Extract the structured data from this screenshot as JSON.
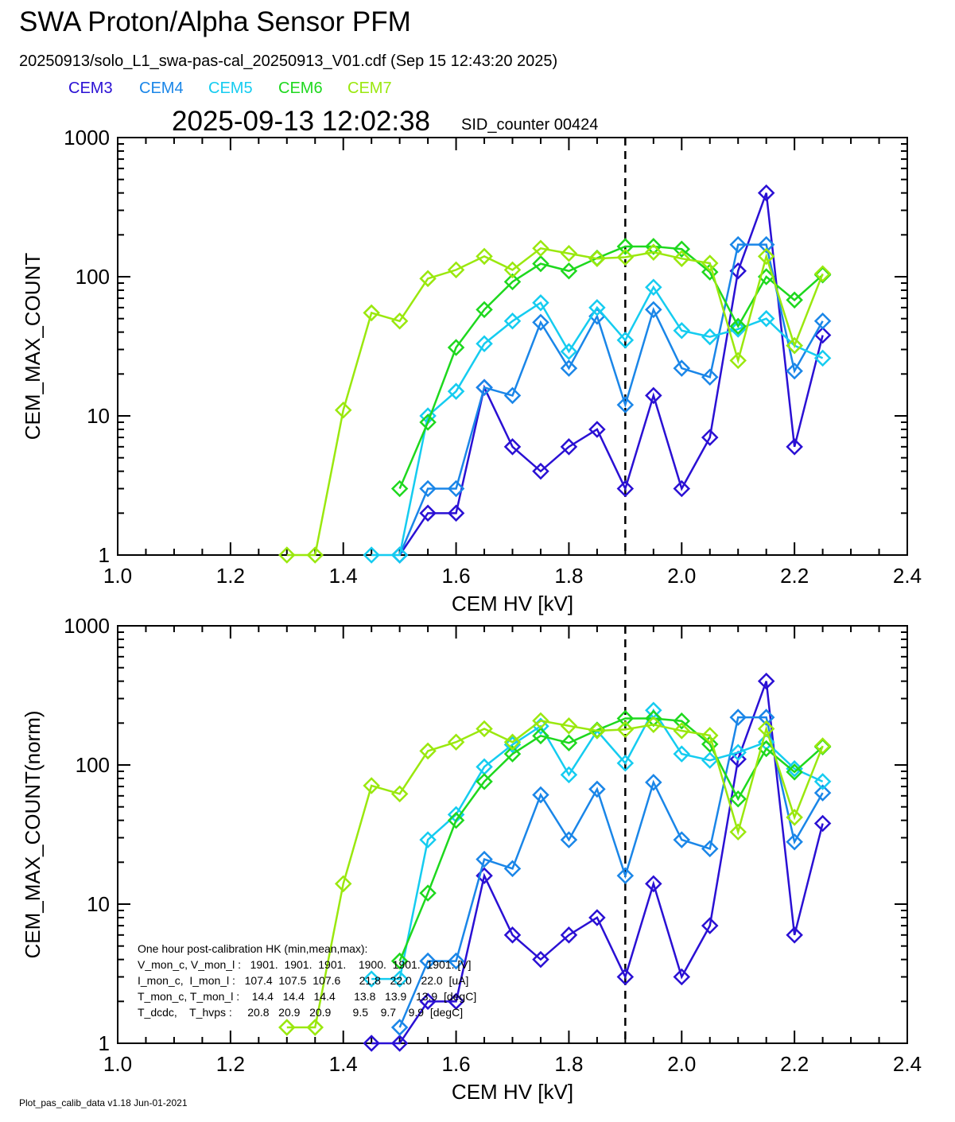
{
  "header": {
    "title": "SWA Proton/Alpha Sensor PFM",
    "subtitle": "20250913/solo_L1_swa-pas-cal_20250913_V01.cdf  (Sep 15 12:43:20 2025)",
    "timestamp": "2025-09-13 12:02:38",
    "sid": "SID_counter 00424"
  },
  "legend": [
    {
      "name": "CEM3",
      "color": "#2a10d4"
    },
    {
      "name": "CEM4",
      "color": "#1a86e8"
    },
    {
      "name": "CEM5",
      "color": "#15ccf0"
    },
    {
      "name": "CEM6",
      "color": "#1ed81e"
    },
    {
      "name": "CEM7",
      "color": "#9ae80e"
    }
  ],
  "footer": "Plot_pas_calib_data v1.18 Jun-01-2021",
  "hk_box": {
    "lines": [
      "One hour post-calibration HK (min,mean,max):",
      "V_mon_c, V_mon_l :   1901.  1901.  1901.    1900.  1901.  1901. [V]",
      "I_mon_c,  I_mon_l :   107.4  107.5  107.6      21.8   22.0   22.0  [uA]",
      "T_mon_c, T_mon_l :    14.4   14.4   14.4      13.8   13.9   13.9  [degC]",
      "T_dcdc,    T_hvps :     20.8   20.9   20.9       9.5    9.7    9.9  [degC]"
    ]
  },
  "chart_data": [
    {
      "type": "line",
      "title": "",
      "xlabel": "CEM HV [kV]",
      "ylabel": "CEM_MAX_COUNT",
      "xlim": [
        1.0,
        2.4
      ],
      "ylim": [
        1,
        1000
      ],
      "yscale": "log",
      "x_ticks": [
        "1.0",
        "1.2",
        "1.4",
        "1.6",
        "1.8",
        "2.0",
        "2.2",
        "2.4"
      ],
      "y_ticks": [
        "1",
        "10",
        "100",
        "1000"
      ],
      "vline_x": 1.9,
      "series": [
        {
          "name": "CEM3",
          "color": "#2a10d4",
          "points": [
            [
              1.5,
              1
            ],
            [
              1.55,
              2
            ],
            [
              1.6,
              2
            ],
            [
              1.65,
              16
            ],
            [
              1.7,
              6
            ],
            [
              1.75,
              4
            ],
            [
              1.8,
              6
            ],
            [
              1.85,
              8
            ],
            [
              1.9,
              3
            ],
            [
              1.95,
              14
            ],
            [
              2.0,
              3
            ],
            [
              2.05,
              7
            ],
            [
              2.1,
              110
            ],
            [
              2.15,
              400
            ],
            [
              2.2,
              6
            ],
            [
              2.25,
              38
            ]
          ]
        },
        {
          "name": "CEM4",
          "color": "#1a86e8",
          "points": [
            [
              1.5,
              1
            ],
            [
              1.55,
              3
            ],
            [
              1.6,
              3
            ],
            [
              1.65,
              16
            ],
            [
              1.7,
              14
            ],
            [
              1.75,
              47
            ],
            [
              1.8,
              22
            ],
            [
              1.85,
              52
            ],
            [
              1.9,
              12
            ],
            [
              1.95,
              58
            ],
            [
              2.0,
              22
            ],
            [
              2.05,
              19
            ],
            [
              2.1,
              170
            ],
            [
              2.15,
              170
            ],
            [
              2.2,
              21
            ],
            [
              2.25,
              48
            ]
          ]
        },
        {
          "name": "CEM5",
          "color": "#15ccf0",
          "points": [
            [
              1.45,
              1
            ],
            [
              1.5,
              1
            ],
            [
              1.55,
              10
            ],
            [
              1.6,
              15
            ],
            [
              1.65,
              33
            ],
            [
              1.7,
              48
            ],
            [
              1.75,
              65
            ],
            [
              1.8,
              29
            ],
            [
              1.85,
              60
            ],
            [
              1.9,
              35
            ],
            [
              1.95,
              84
            ],
            [
              2.0,
              41
            ],
            [
              2.05,
              37
            ],
            [
              2.1,
              42
            ],
            [
              2.15,
              50
            ],
            [
              2.2,
              32
            ],
            [
              2.25,
              26
            ]
          ]
        },
        {
          "name": "CEM6",
          "color": "#1ed81e",
          "points": [
            [
              1.5,
              3
            ],
            [
              1.55,
              9
            ],
            [
              1.6,
              31
            ],
            [
              1.65,
              58
            ],
            [
              1.7,
              92
            ],
            [
              1.75,
              124
            ],
            [
              1.8,
              110
            ],
            [
              1.85,
              136
            ],
            [
              1.9,
              165
            ],
            [
              1.95,
              165
            ],
            [
              2.0,
              158
            ],
            [
              2.05,
              108
            ],
            [
              2.1,
              44
            ],
            [
              2.15,
              100
            ],
            [
              2.2,
              68
            ],
            [
              2.25,
              103
            ]
          ]
        },
        {
          "name": "CEM7",
          "color": "#9ae80e",
          "points": [
            [
              1.3,
              1
            ],
            [
              1.35,
              1
            ],
            [
              1.4,
              11
            ],
            [
              1.45,
              55
            ],
            [
              1.5,
              48
            ],
            [
              1.55,
              97
            ],
            [
              1.6,
              112
            ],
            [
              1.65,
              140
            ],
            [
              1.7,
              112
            ],
            [
              1.75,
              160
            ],
            [
              1.8,
              147
            ],
            [
              1.85,
              135
            ],
            [
              1.9,
              138
            ],
            [
              1.95,
              150
            ],
            [
              2.0,
              135
            ],
            [
              2.05,
              125
            ],
            [
              2.1,
              25
            ],
            [
              2.15,
              140
            ],
            [
              2.2,
              32
            ],
            [
              2.25,
              105
            ]
          ]
        }
      ]
    },
    {
      "type": "line",
      "title": "",
      "xlabel": "CEM HV [kV]",
      "ylabel": "CEM_MAX_COUNT(norm)",
      "xlim": [
        1.0,
        2.4
      ],
      "ylim": [
        1,
        1000
      ],
      "yscale": "log",
      "x_ticks": [
        "1.0",
        "1.2",
        "1.4",
        "1.6",
        "1.8",
        "2.0",
        "2.2",
        "2.4"
      ],
      "y_ticks": [
        "1",
        "10",
        "100",
        "1000"
      ],
      "vline_x": 1.9,
      "series": [
        {
          "name": "CEM3",
          "color": "#2a10d4",
          "points": [
            [
              1.45,
              1
            ],
            [
              1.5,
              1
            ],
            [
              1.55,
              2
            ],
            [
              1.6,
              2
            ],
            [
              1.65,
              16
            ],
            [
              1.7,
              6
            ],
            [
              1.75,
              4
            ],
            [
              1.8,
              6
            ],
            [
              1.85,
              8
            ],
            [
              1.9,
              3
            ],
            [
              1.95,
              14
            ],
            [
              2.0,
              3
            ],
            [
              2.05,
              7
            ],
            [
              2.1,
              110
            ],
            [
              2.15,
              400
            ],
            [
              2.2,
              6
            ],
            [
              2.25,
              38
            ]
          ]
        },
        {
          "name": "CEM4",
          "color": "#1a86e8",
          "points": [
            [
              1.5,
              1.3
            ],
            [
              1.55,
              3.9
            ],
            [
              1.6,
              3.9
            ],
            [
              1.65,
              21
            ],
            [
              1.7,
              18
            ],
            [
              1.75,
              61
            ],
            [
              1.8,
              29
            ],
            [
              1.85,
              67
            ],
            [
              1.9,
              16
            ],
            [
              1.95,
              75
            ],
            [
              2.0,
              29
            ],
            [
              2.05,
              25
            ],
            [
              2.1,
              220
            ],
            [
              2.15,
              220
            ],
            [
              2.2,
              28
            ],
            [
              2.25,
              63
            ]
          ]
        },
        {
          "name": "CEM5",
          "color": "#15ccf0",
          "points": [
            [
              1.45,
              2.9
            ],
            [
              1.5,
              2.9
            ],
            [
              1.55,
              29
            ],
            [
              1.6,
              44
            ],
            [
              1.65,
              97
            ],
            [
              1.7,
              140
            ],
            [
              1.75,
              190
            ],
            [
              1.8,
              85
            ],
            [
              1.85,
              176
            ],
            [
              1.9,
              103
            ],
            [
              1.95,
              247
            ],
            [
              2.0,
              120
            ],
            [
              2.05,
              108
            ],
            [
              2.1,
              123
            ],
            [
              2.15,
              146
            ],
            [
              2.2,
              94
            ],
            [
              2.25,
              76
            ]
          ]
        },
        {
          "name": "CEM6",
          "color": "#1ed81e",
          "points": [
            [
              1.5,
              3.9
            ],
            [
              1.55,
              12
            ],
            [
              1.6,
              40
            ],
            [
              1.65,
              76
            ],
            [
              1.7,
              120
            ],
            [
              1.75,
              162
            ],
            [
              1.8,
              144
            ],
            [
              1.85,
              178
            ],
            [
              1.9,
              216
            ],
            [
              1.95,
              216
            ],
            [
              2.0,
              207
            ],
            [
              2.05,
              141
            ],
            [
              2.1,
              57
            ],
            [
              2.15,
              131
            ],
            [
              2.2,
              89
            ],
            [
              2.25,
              135
            ]
          ]
        },
        {
          "name": "CEM7",
          "color": "#9ae80e",
          "points": [
            [
              1.3,
              1.3
            ],
            [
              1.35,
              1.3
            ],
            [
              1.4,
              14
            ],
            [
              1.45,
              71
            ],
            [
              1.5,
              62
            ],
            [
              1.55,
              126
            ],
            [
              1.6,
              146
            ],
            [
              1.65,
              182
            ],
            [
              1.7,
              146
            ],
            [
              1.75,
              208
            ],
            [
              1.8,
              191
            ],
            [
              1.85,
              176
            ],
            [
              1.9,
              180
            ],
            [
              1.95,
              195
            ],
            [
              2.0,
              176
            ],
            [
              2.05,
              163
            ],
            [
              2.1,
              33
            ],
            [
              2.15,
              182
            ],
            [
              2.2,
              42
            ],
            [
              2.25,
              137
            ]
          ]
        }
      ]
    }
  ]
}
